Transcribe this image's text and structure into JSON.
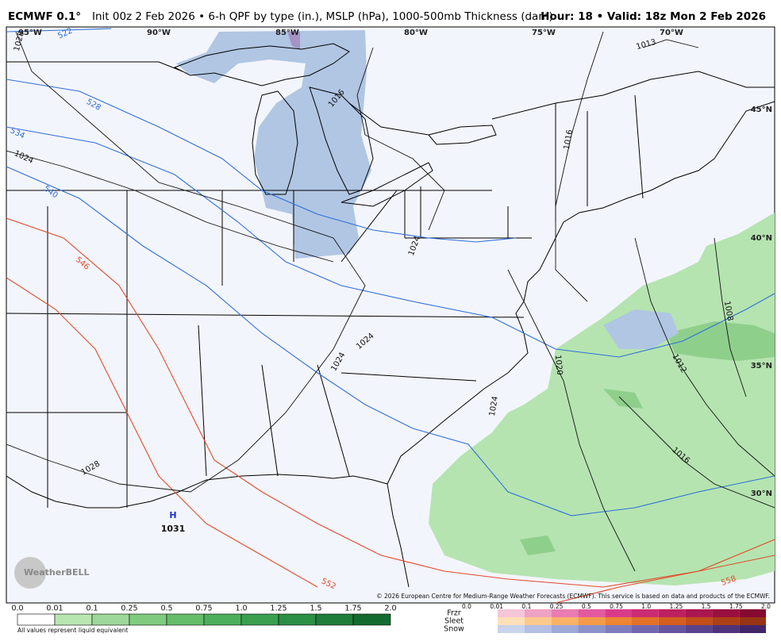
{
  "header": {
    "model": "ECMWF 0.1°",
    "description": "Init 00z 2 Feb 2026 • 6-h QPF by type (in.), MSLP (hPa), 1000-500mb Thickness (dam)",
    "valid": "Hour: 18 • Valid: 18z Mon 2 Feb 2026"
  },
  "map": {
    "longitude_labels": [
      "95°W",
      "90°W",
      "85°W",
      "80°W",
      "75°W",
      "70°W"
    ],
    "latitude_labels": [
      "45°N",
      "40°N",
      "35°N",
      "30°N"
    ],
    "thickness_labels": [
      "522",
      "528",
      "534",
      "540",
      "546",
      "552",
      "558"
    ],
    "isobar_labels": [
      "1028",
      "1024",
      "1016",
      "1013",
      "1016",
      "1024",
      "1024",
      "1024",
      "1020",
      "1024",
      "1028",
      "1008",
      "1012",
      "1016"
    ],
    "high": {
      "symbol": "H",
      "pressure": "1031"
    },
    "logo": "WeatherBELL",
    "copyright": "© 2026 European Centre for Medium-Range Weather Forecasts (ECMWF). This service is based on data and products of the ECMWF."
  },
  "legend": {
    "rain_ticks": [
      "0.0",
      "0.01",
      "0.1",
      "0.25",
      "0.5",
      "0.75",
      "1.0",
      "1.25",
      "1.5",
      "1.75",
      "2.0"
    ],
    "note": "All values represent liquid equivalent",
    "ptype_rows": [
      "Frzr",
      "Sleet",
      "Snow"
    ],
    "ptype_ticks": [
      "0.0",
      "0.01",
      "0.1",
      "0.25",
      "0.5",
      "0.75",
      "1.0",
      "1.25",
      "1.5",
      "1.75",
      "2.0"
    ]
  }
}
